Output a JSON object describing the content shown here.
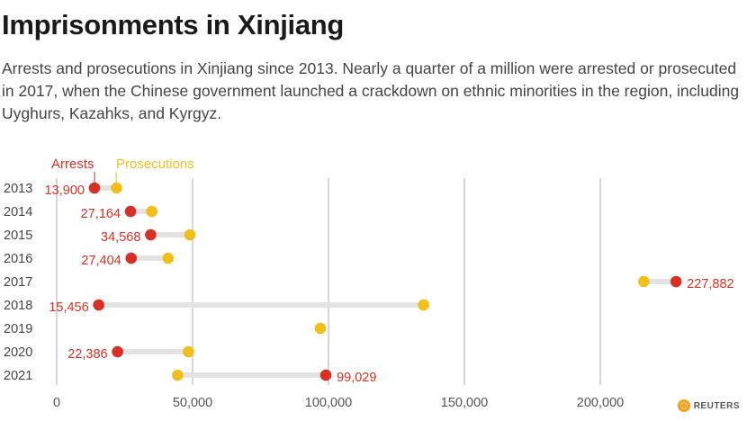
{
  "title": "Imprisonments in Xinjiang",
  "subtitle": "Arrests and prosecutions in Xinjiang since 2013. Nearly a quarter of a million were arrested or prosecuted in 2017, when the Chinese government launched a crackdown on ethnic minorities in the region, including Uyghurs, Kazahks, and Kyrgyz.",
  "source_logo": "REUTERS",
  "colors": {
    "arrests": "#d93025",
    "prosecutions": "#f2be1a",
    "connector": "#e3e3e3",
    "grid": "#bbbbbb"
  },
  "chart_data": {
    "type": "dumbbell",
    "legend": [
      {
        "name": "Arrests",
        "color": "#d93025"
      },
      {
        "name": "Prosecutions",
        "color": "#f2be1a"
      }
    ],
    "categories": [
      "2013",
      "2014",
      "2015",
      "2016",
      "2017",
      "2018",
      "2019",
      "2020",
      "2021"
    ],
    "series": [
      {
        "name": "Arrests",
        "values": [
          13900,
          27164,
          34568,
          27404,
          227882,
          15456,
          null,
          22386,
          99029
        ]
      },
      {
        "name": "Prosecutions",
        "values": [
          22000,
          35000,
          49000,
          41000,
          216000,
          135000,
          97000,
          48500,
          44500
        ]
      }
    ],
    "data_labels": [
      "13,900",
      "27,164",
      "34,568",
      "27,404",
      "227,882",
      "15,456",
      "",
      "22,386",
      "99,029"
    ],
    "xlim": [
      0,
      235000
    ],
    "xticks": [
      0,
      50000,
      100000,
      150000,
      200000
    ],
    "xtick_labels": [
      "0",
      "50,000",
      "100,000",
      "150,000",
      "200,000"
    ],
    "grid": true
  }
}
